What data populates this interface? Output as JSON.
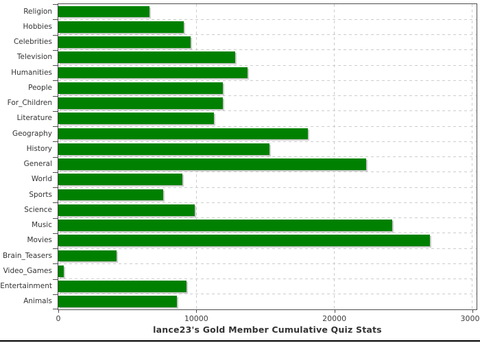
{
  "chart_data": {
    "type": "bar",
    "orientation": "horizontal",
    "title": "lance23's Gold Member Cumulative Quiz Stats",
    "categories": [
      "Religion",
      "Hobbies",
      "Celebrities",
      "Television",
      "Humanities",
      "People",
      "For_Children",
      "Literature",
      "Geography",
      "History",
      "General",
      "World",
      "Sports",
      "Science",
      "Music",
      "Movies",
      "Brain_Teasers",
      "Video_Games",
      "Entertainment",
      "Animals"
    ],
    "values": [
      6600,
      9100,
      9600,
      12800,
      13700,
      11900,
      11900,
      11300,
      18100,
      15300,
      22300,
      9000,
      7600,
      9900,
      24200,
      26900,
      4200,
      400,
      9300,
      8600
    ],
    "xlim": [
      0,
      30300
    ],
    "xticks": [
      {
        "label": "0",
        "value": 0
      },
      {
        "label": "10000",
        "value": 10000
      },
      {
        "label": "20000",
        "value": 20000
      },
      {
        "label": "30000",
        "value": 30000
      }
    ],
    "grid": {
      "style": "dashed",
      "color": "#cccccc",
      "vertical_at": [
        10000,
        20000,
        30000
      ],
      "horizontal": "category-boundaries"
    },
    "bar_color": "#008000",
    "bar_shadow_color": "#cccccc",
    "legend": "none",
    "xlabel": "",
    "ylabel": ""
  }
}
